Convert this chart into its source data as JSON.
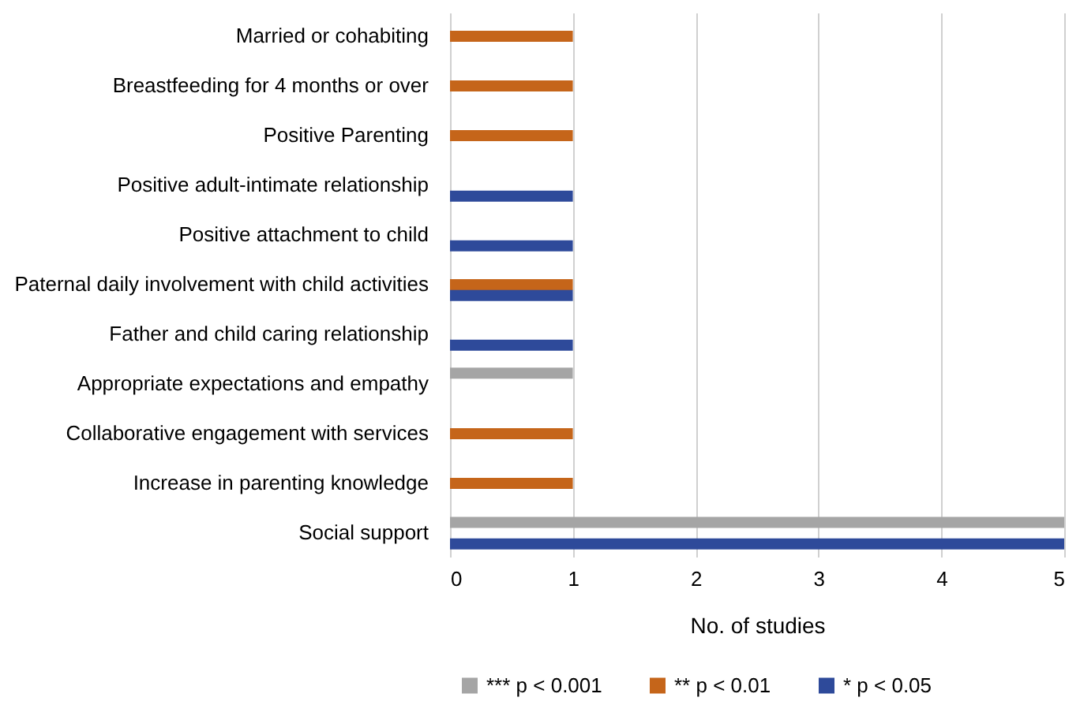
{
  "chart_data": {
    "type": "bar",
    "orientation": "horizontal",
    "xlabel": "No. of studies",
    "categories": [
      "Married or cohabiting",
      "Breastfeeding for 4 months or over",
      "Positive Parenting",
      "Positive adult-intimate relationship",
      "Positive attachment to child",
      "Paternal daily involvement with child activities",
      "Father and child caring relationship",
      "Appropriate expectations and empathy",
      "Collaborative engagement with services",
      "Increase in parenting knowledge",
      "Social support"
    ],
    "series": [
      {
        "name": "*** p < 0.001",
        "color": "#a5a5a5",
        "values": [
          null,
          null,
          null,
          null,
          null,
          null,
          null,
          1,
          null,
          null,
          5
        ]
      },
      {
        "name": "** p < 0.01",
        "color": "#c5651a",
        "values": [
          1,
          1,
          1,
          null,
          null,
          1,
          null,
          null,
          1,
          1,
          null
        ]
      },
      {
        "name": "* p < 0.05",
        "color": "#2e4a9a",
        "values": [
          null,
          null,
          null,
          1,
          1,
          1,
          1,
          null,
          null,
          null,
          5
        ]
      }
    ],
    "xlim": [
      0,
      5
    ],
    "xticks": [
      0,
      1,
      2,
      3,
      4,
      5
    ],
    "grid": "x",
    "legend": "bottom"
  }
}
